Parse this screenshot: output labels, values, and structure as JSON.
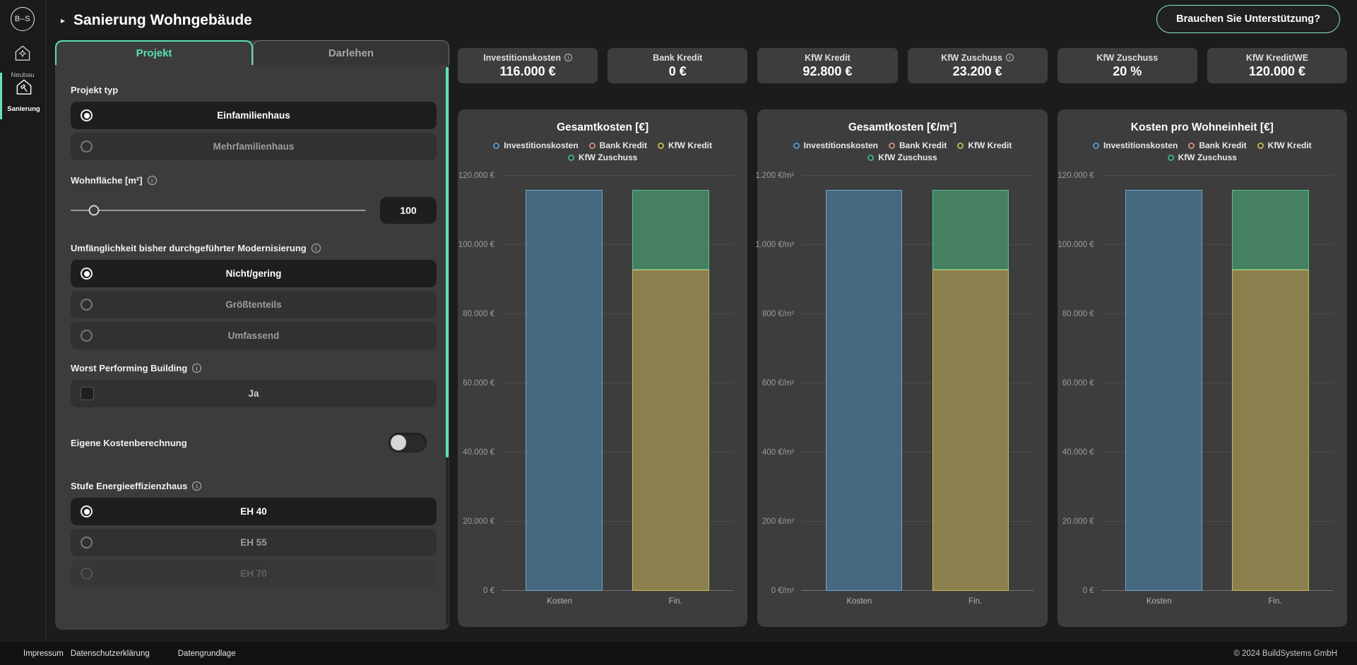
{
  "theme": {
    "accent": "#62e4b5",
    "page_bg": "#1c1c1c",
    "card_bg": "#3d3d3d"
  },
  "sidebar": {
    "logo_text": "B–S",
    "items": [
      {
        "label": "Neubau",
        "icon": "house-plus-icon",
        "active": false
      },
      {
        "label": "Sanierung",
        "icon": "house-hammer-icon",
        "active": true
      }
    ]
  },
  "header": {
    "breadcrumb_icon": "▸",
    "title": "Sanierung Wohngebäude",
    "support_button_label": "Brauchen Sie Unterstützung?"
  },
  "panel": {
    "tabs": [
      {
        "label": "Projekt",
        "active": true
      },
      {
        "label": "Darlehen",
        "active": false
      }
    ],
    "projekt_typ": {
      "label": "Projekt typ",
      "options": [
        {
          "label": "Einfamilienhaus",
          "selected": true
        },
        {
          "label": "Mehrfamilienhaus",
          "selected": false
        }
      ]
    },
    "wohnflaeche": {
      "label": "Wohnfläche [m²]",
      "has_info": true,
      "value": "100"
    },
    "modernisierung": {
      "label": "Umfänglichkeit bisher durchgeführter Modernisierung",
      "has_info": true,
      "options": [
        {
          "label": "Nicht/gering",
          "selected": true
        },
        {
          "label": "Größtenteils",
          "selected": false
        },
        {
          "label": "Umfassend",
          "selected": false
        }
      ]
    },
    "wpb": {
      "label": "Worst Performing Building",
      "has_info": true,
      "checkbox_label": "Ja",
      "checked": false
    },
    "eigene_kosten": {
      "label": "Eigene Kostenberechnung",
      "toggle_on": false
    },
    "energieeffizienz": {
      "label": "Stufe Energieeffizienzhaus",
      "has_info": true,
      "options": [
        {
          "label": "EH 40",
          "selected": true
        },
        {
          "label": "EH 55",
          "selected": false
        },
        {
          "label": "EH 70",
          "selected": false
        }
      ]
    }
  },
  "kpis": [
    {
      "label": "Investitionskosten",
      "info": true,
      "value": "116.000 €"
    },
    {
      "label": "Bank Kredit",
      "info": false,
      "value": "0 €"
    },
    {
      "label": "KfW Kredit",
      "info": false,
      "value": "92.800 €"
    },
    {
      "label": "KfW Zuschuss",
      "info": true,
      "value": "23.200 €"
    },
    {
      "label": "KfW Zuschuss",
      "info": false,
      "value": "20 %"
    },
    {
      "label": "KfW Kredit/WE",
      "info": false,
      "value": "120.000 €"
    }
  ],
  "chart_data": [
    {
      "type": "bar",
      "stacked": true,
      "title": "Gesamtkosten [€]",
      "categories": [
        "Kosten",
        "Fin."
      ],
      "series": [
        {
          "name": "Investitionskosten",
          "values": [
            116000,
            0
          ],
          "fill": "#46687f",
          "stroke": "#6ea7c9",
          "legend": "#5795c5"
        },
        {
          "name": "Bank Kredit",
          "values": [
            0,
            0
          ],
          "fill": "#8a5f55",
          "stroke": "#c98c7e",
          "legend": "#c98c7e"
        },
        {
          "name": "KfW Kredit",
          "values": [
            0,
            92800
          ],
          "fill": "#8b7f4e",
          "stroke": "#c8ba60",
          "legend": "#bfb35a"
        },
        {
          "name": "KfW Zuschuss",
          "values": [
            0,
            23200
          ],
          "fill": "#458063",
          "stroke": "#5cbf8e",
          "legend": "#3fae7e"
        }
      ],
      "ylim": [
        0,
        120000
      ],
      "grid": true,
      "legend_position": "top",
      "yticks": [
        {
          "value": 120000,
          "label": "120.000 €"
        },
        {
          "value": 100000,
          "label": "100.000 €"
        },
        {
          "value": 80000,
          "label": "80.000 €"
        },
        {
          "value": 60000,
          "label": "60.000 €"
        },
        {
          "value": 40000,
          "label": "40.000 €"
        },
        {
          "value": 20000,
          "label": "20.000 €"
        },
        {
          "value": 0,
          "label": "0 €"
        }
      ]
    },
    {
      "type": "bar",
      "stacked": true,
      "title": "Gesamtkosten [€/m²]",
      "categories": [
        "Kosten",
        "Fin."
      ],
      "series": [
        {
          "name": "Investitionskosten",
          "values": [
            1160,
            0
          ],
          "fill": "#46687f",
          "stroke": "#6ea7c9",
          "legend": "#5795c5"
        },
        {
          "name": "Bank Kredit",
          "values": [
            0,
            0
          ],
          "fill": "#8a5f55",
          "stroke": "#c98c7e",
          "legend": "#c98c7e"
        },
        {
          "name": "KfW Kredit",
          "values": [
            0,
            928
          ],
          "fill": "#8b7f4e",
          "stroke": "#c8ba60",
          "legend": "#bfb35a"
        },
        {
          "name": "KfW Zuschuss",
          "values": [
            0,
            232
          ],
          "fill": "#458063",
          "stroke": "#5cbf8e",
          "legend": "#3fae7e"
        }
      ],
      "ylim": [
        0,
        1200
      ],
      "grid": true,
      "legend_position": "top",
      "yticks": [
        {
          "value": 1200,
          "label": "1.200 €/m²"
        },
        {
          "value": 1000,
          "label": "1.000 €/m²"
        },
        {
          "value": 800,
          "label": "800 €/m²"
        },
        {
          "value": 600,
          "label": "600 €/m²"
        },
        {
          "value": 400,
          "label": "400 €/m²"
        },
        {
          "value": 200,
          "label": "200 €/m²"
        },
        {
          "value": 0,
          "label": "0 €/m²"
        }
      ]
    },
    {
      "type": "bar",
      "stacked": true,
      "title": "Kosten pro Wohneinheit [€]",
      "categories": [
        "Kosten",
        "Fin."
      ],
      "series": [
        {
          "name": "Investitionskosten",
          "values": [
            116000,
            0
          ],
          "fill": "#46687f",
          "stroke": "#6ea7c9",
          "legend": "#5795c5"
        },
        {
          "name": "Bank Kredit",
          "values": [
            0,
            0
          ],
          "fill": "#8a5f55",
          "stroke": "#c98c7e",
          "legend": "#c98c7e"
        },
        {
          "name": "KfW Kredit",
          "values": [
            0,
            92800
          ],
          "fill": "#8b7f4e",
          "stroke": "#c8ba60",
          "legend": "#bfb35a"
        },
        {
          "name": "KfW Zuschuss",
          "values": [
            0,
            23200
          ],
          "fill": "#458063",
          "stroke": "#5cbf8e",
          "legend": "#3fae7e"
        }
      ],
      "ylim": [
        0,
        120000
      ],
      "grid": true,
      "legend_position": "top",
      "yticks": [
        {
          "value": 120000,
          "label": "120.000 €"
        },
        {
          "value": 100000,
          "label": "100.000 €"
        },
        {
          "value": 80000,
          "label": "80.000 €"
        },
        {
          "value": 60000,
          "label": "60.000 €"
        },
        {
          "value": 40000,
          "label": "40.000 €"
        },
        {
          "value": 20000,
          "label": "20.000 €"
        },
        {
          "value": 0,
          "label": "0 €"
        }
      ]
    }
  ],
  "footer": {
    "links": [
      "Impressum",
      "Datenschutzerklärung",
      "Datengrundlage"
    ],
    "copyright": "© 2024 BuildSystems GmbH"
  }
}
